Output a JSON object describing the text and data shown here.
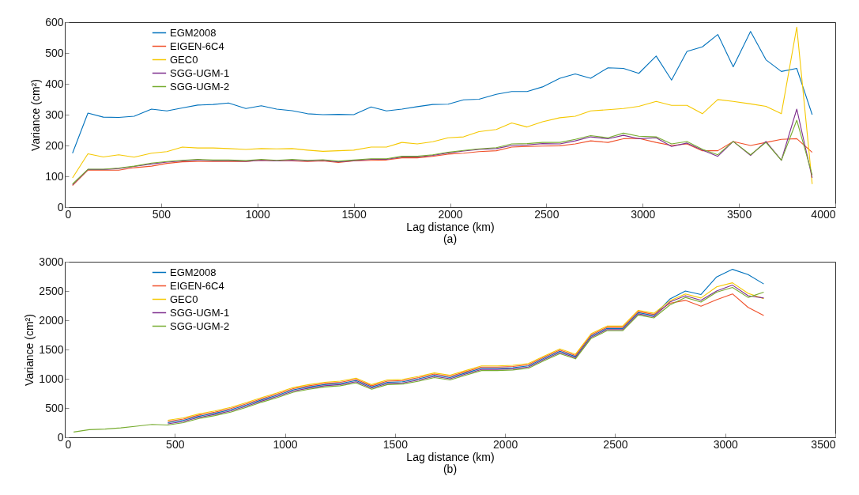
{
  "chart_data": [
    {
      "type": "line",
      "xlabel": "Lag distance (km)",
      "ylabel": "Variance (cm²)",
      "annotations": [
        "(a)"
      ],
      "legend": "top left",
      "grid": false,
      "x": [
        40,
        120,
        200,
        280,
        360,
        450,
        530,
        610,
        690,
        770,
        850,
        940,
        1020,
        1100,
        1180,
        1260,
        1340,
        1420,
        1500,
        1590,
        1670,
        1750,
        1830,
        1910,
        1990,
        2070,
        2150,
        2240,
        2320,
        2400,
        2480,
        2570,
        2650,
        2730,
        2820,
        2900,
        2980,
        3070,
        3150,
        3230,
        3310,
        3390,
        3470,
        3560,
        3640,
        3720,
        3800,
        3880
      ],
      "xlim": [
        0,
        4000
      ],
      "xticks": [
        0,
        500,
        1000,
        1500,
        2000,
        2500,
        3000,
        3500,
        4000
      ],
      "ylim": [
        0,
        600
      ],
      "yticks": [
        0,
        100,
        200,
        300,
        400,
        500,
        600
      ],
      "series": [
        {
          "name": "EGM2008",
          "color": "#0072bd",
          "values": [
            175,
            305,
            292,
            291,
            295,
            318,
            312,
            322,
            331,
            333,
            338,
            320,
            329,
            318,
            313,
            303,
            300,
            301,
            300,
            325,
            312,
            318,
            326,
            333,
            334,
            348,
            350,
            366,
            375,
            375,
            390,
            418,
            432,
            418,
            452,
            450,
            434,
            490,
            412,
            505,
            520,
            560,
            455,
            570,
            478,
            440,
            450,
            300
          ]
        },
        {
          "name": "EIGEN-6C4",
          "color": "#f0502a",
          "values": [
            70,
            120,
            120,
            120,
            128,
            133,
            142,
            147,
            148,
            148,
            148,
            148,
            152,
            150,
            150,
            148,
            150,
            145,
            150,
            152,
            153,
            160,
            160,
            165,
            172,
            175,
            180,
            183,
            195,
            197,
            198,
            199,
            205,
            215,
            210,
            222,
            223,
            210,
            200,
            205,
            183,
            183,
            213,
            200,
            210,
            220,
            222,
            178
          ]
        },
        {
          "name": "GEC0",
          "color": "#f5c800",
          "values": [
            95,
            173,
            163,
            170,
            162,
            175,
            180,
            195,
            192,
            192,
            190,
            187,
            190,
            189,
            190,
            185,
            181,
            183,
            185,
            195,
            195,
            210,
            205,
            212,
            225,
            228,
            245,
            252,
            273,
            260,
            277,
            290,
            295,
            312,
            316,
            320,
            327,
            343,
            330,
            330,
            303,
            349,
            343,
            335,
            327,
            303,
            584,
            75
          ]
        },
        {
          "name": "SGG-UGM-1",
          "color": "#7e2f8e",
          "values": [
            73,
            122,
            122,
            125,
            132,
            140,
            146,
            150,
            153,
            151,
            151,
            149,
            152,
            150,
            152,
            150,
            152,
            147,
            151,
            155,
            155,
            163,
            163,
            168,
            176,
            182,
            187,
            190,
            200,
            202,
            206,
            205,
            215,
            228,
            222,
            233,
            222,
            225,
            197,
            208,
            185,
            165,
            213,
            168,
            213,
            152,
            318,
            95
          ]
        },
        {
          "name": "SGG-UGM-2",
          "color": "#77ac30",
          "values": [
            75,
            123,
            123,
            127,
            133,
            143,
            148,
            152,
            155,
            153,
            153,
            151,
            155,
            152,
            155,
            152,
            154,
            149,
            153,
            157,
            157,
            165,
            165,
            170,
            178,
            184,
            189,
            193,
            205,
            206,
            210,
            210,
            220,
            232,
            225,
            240,
            230,
            228,
            205,
            213,
            188,
            170,
            213,
            170,
            210,
            152,
            282,
            105
          ]
        }
      ]
    },
    {
      "type": "line",
      "xlabel": "Lag distance (km)",
      "ylabel": "Variance (cm²)",
      "annotations": [
        "(b)"
      ],
      "legend": "top left",
      "grid": false,
      "x": [
        40,
        111,
        183,
        254,
        325,
        396,
        468,
        539,
        610,
        681,
        753,
        824,
        895,
        966,
        1038,
        1109,
        1180,
        1251,
        1323,
        1394,
        1465,
        1536,
        1608,
        1679,
        1750,
        1821,
        1893,
        1964,
        2035,
        2106,
        2178,
        2249,
        2320,
        2391,
        2463,
        2534,
        2605,
        2676,
        2748,
        2819,
        2890,
        2961,
        3033,
        3104,
        3175
      ],
      "xlim": [
        0,
        3500
      ],
      "xticks": [
        0,
        500,
        1000,
        1500,
        2000,
        2500,
        3000,
        3500
      ],
      "ylim": [
        0,
        3000
      ],
      "yticks": [
        0,
        500,
        1000,
        1500,
        2000,
        2500,
        3000
      ],
      "series": [
        {
          "name": "EGM2008",
          "color": "#0072bd",
          "values": [
            null,
            null,
            null,
            null,
            null,
            null,
            250,
            290,
            360,
            410,
            470,
            550,
            640,
            720,
            810,
            860,
            900,
            920,
            970,
            860,
            940,
            950,
            1000,
            1060,
            1020,
            1100,
            1180,
            1180,
            1190,
            1220,
            1350,
            1470,
            1380,
            1730,
            1860,
            1860,
            2130,
            2080,
            2360,
            2500,
            2440,
            2740,
            2870,
            2780,
            2620
          ]
        },
        {
          "name": "EIGEN-6C4",
          "color": "#f0502a",
          "values": [
            null,
            null,
            null,
            null,
            null,
            null,
            270,
            310,
            380,
            430,
            490,
            570,
            660,
            740,
            830,
            880,
            920,
            940,
            990,
            880,
            960,
            970,
            1020,
            1080,
            1040,
            1120,
            1200,
            1200,
            1210,
            1240,
            1370,
            1490,
            1400,
            1750,
            1880,
            1880,
            2150,
            2100,
            2290,
            2340,
            2240,
            2350,
            2450,
            2220,
            2080
          ]
        },
        {
          "name": "GEC0",
          "color": "#f5c800",
          "values": [
            null,
            null,
            null,
            null,
            null,
            null,
            290,
            330,
            400,
            450,
            510,
            590,
            680,
            760,
            850,
            900,
            940,
            960,
            1010,
            900,
            980,
            990,
            1040,
            1100,
            1060,
            1140,
            1220,
            1220,
            1230,
            1260,
            1390,
            1510,
            1420,
            1770,
            1900,
            1900,
            2170,
            2120,
            2330,
            2450,
            2380,
            2570,
            2640,
            2460,
            2370
          ]
        },
        {
          "name": "SGG-UGM-1",
          "color": "#7e2f8e",
          "values": [
            null,
            null,
            null,
            null,
            null,
            null,
            230,
            270,
            340,
            390,
            450,
            530,
            620,
            700,
            790,
            840,
            880,
            900,
            950,
            840,
            920,
            930,
            980,
            1040,
            1000,
            1080,
            1160,
            1160,
            1170,
            1200,
            1330,
            1450,
            1360,
            1710,
            1840,
            1840,
            2110,
            2060,
            2310,
            2420,
            2340,
            2500,
            2600,
            2420,
            2380
          ]
        },
        {
          "name": "SGG-UGM-2",
          "color": "#77ac30",
          "values": [
            90,
            130,
            140,
            160,
            190,
            220,
            210,
            250,
            320,
            370,
            430,
            510,
            600,
            680,
            770,
            820,
            860,
            880,
            930,
            820,
            900,
            910,
            960,
            1020,
            980,
            1060,
            1140,
            1140,
            1150,
            1180,
            1310,
            1430,
            1340,
            1690,
            1820,
            1820,
            2090,
            2040,
            2260,
            2390,
            2310,
            2480,
            2560,
            2390,
            2480
          ]
        }
      ]
    }
  ]
}
